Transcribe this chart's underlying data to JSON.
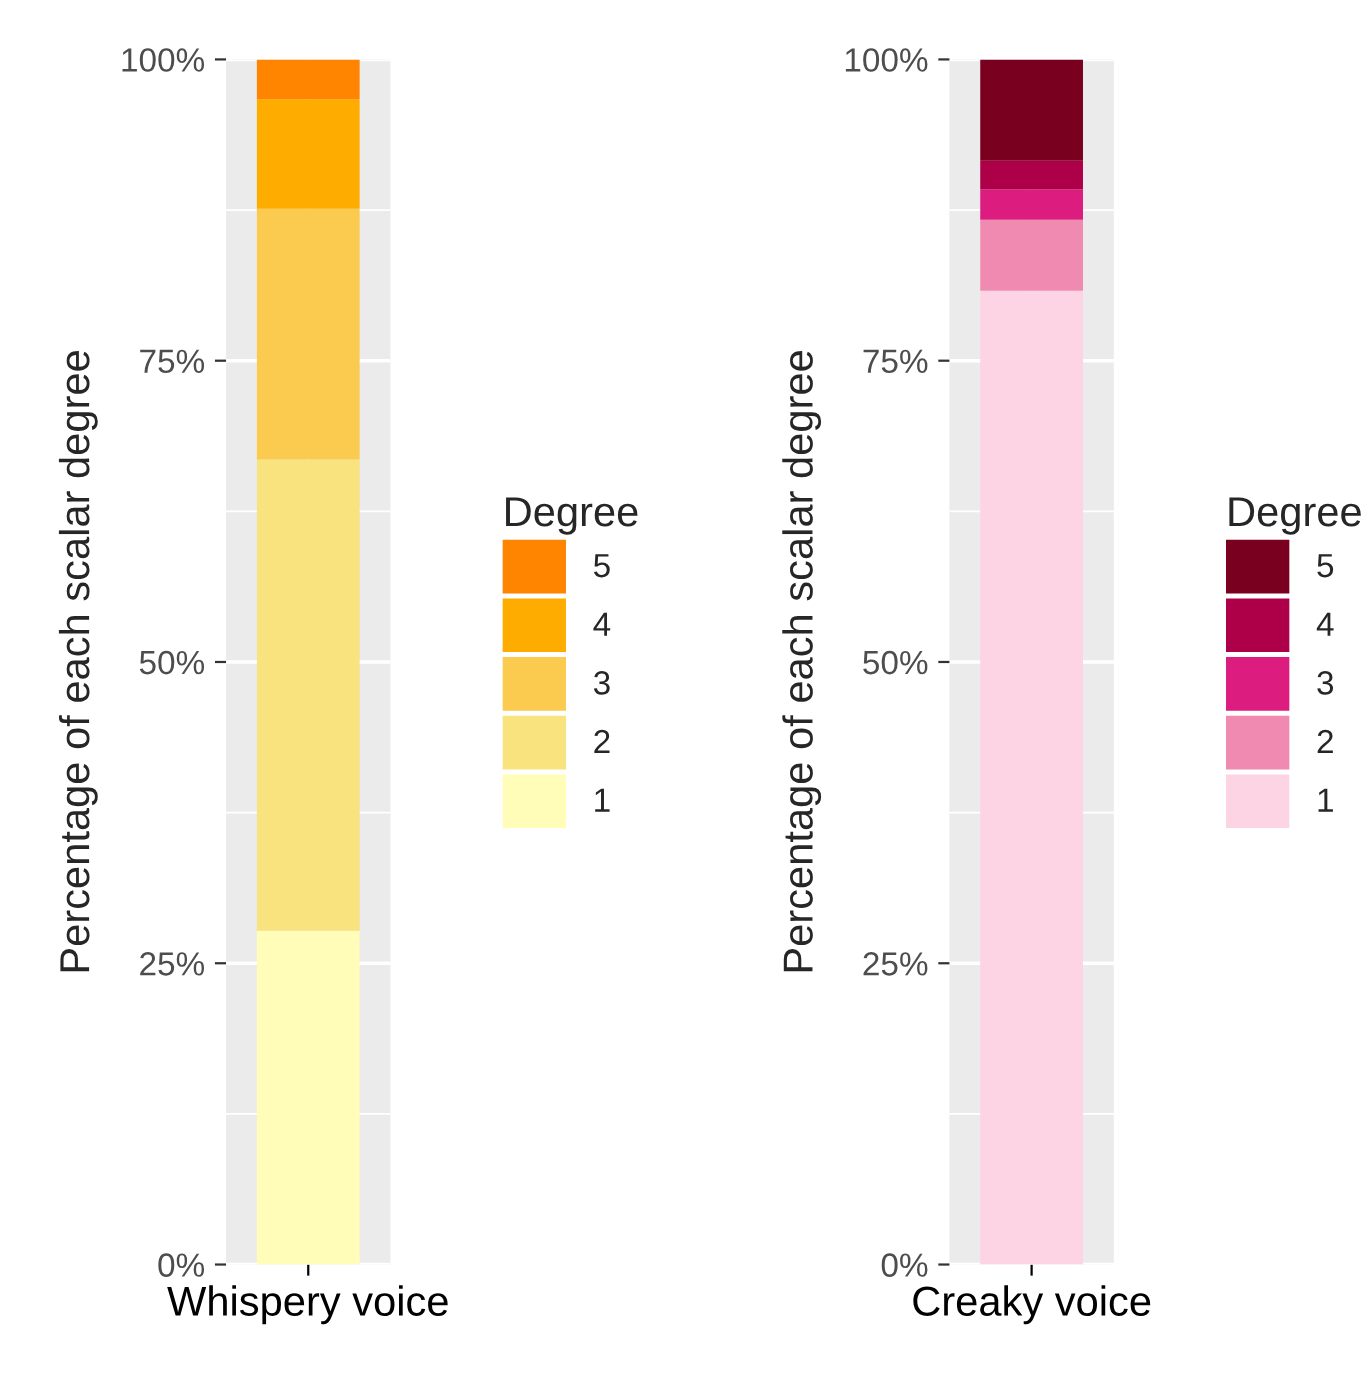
{
  "chart_data": [
    {
      "type": "bar",
      "stacked": true,
      "categories": [
        "Whispery voice"
      ],
      "ylabel": "Percentage of each scalar degree",
      "legend_title": "Degree",
      "legend": "right",
      "grid": true,
      "ylim": [
        0,
        100
      ],
      "yticks": [
        {
          "value": 0,
          "label": "0%"
        },
        {
          "value": 25,
          "label": "25%"
        },
        {
          "value": 50,
          "label": "50%"
        },
        {
          "value": 75,
          "label": "75%"
        },
        {
          "value": 100,
          "label": "100%"
        }
      ],
      "series": [
        {
          "name": "1",
          "color": "#fffdb8",
          "values": [
            27.7
          ]
        },
        {
          "name": "2",
          "color": "#f8e37f",
          "values": [
            39.1
          ]
        },
        {
          "name": "3",
          "color": "#fbcb50",
          "values": [
            20.8
          ]
        },
        {
          "name": "4",
          "color": "#feac00",
          "values": [
            9.1
          ]
        },
        {
          "name": "5",
          "color": "#ff8400",
          "values": [
            3.3
          ]
        }
      ]
    },
    {
      "type": "bar",
      "stacked": true,
      "categories": [
        "Creaky voice"
      ],
      "ylabel": "Percentage of each scalar degree",
      "legend_title": "Degree",
      "legend": "right",
      "grid": true,
      "ylim": [
        0,
        100
      ],
      "yticks": [
        {
          "value": 0,
          "label": "0%"
        },
        {
          "value": 25,
          "label": "25%"
        },
        {
          "value": 50,
          "label": "50%"
        },
        {
          "value": 75,
          "label": "75%"
        },
        {
          "value": 100,
          "label": "100%"
        }
      ],
      "series": [
        {
          "name": "1",
          "color": "#fdd4e3",
          "values": [
            80.8
          ]
        },
        {
          "name": "2",
          "color": "#f08ab0",
          "values": [
            5.9
          ]
        },
        {
          "name": "3",
          "color": "#dd1c80",
          "values": [
            2.5
          ]
        },
        {
          "name": "4",
          "color": "#ae0049",
          "values": [
            2.4
          ]
        },
        {
          "name": "5",
          "color": "#7a0020",
          "values": [
            8.4
          ]
        }
      ]
    }
  ]
}
